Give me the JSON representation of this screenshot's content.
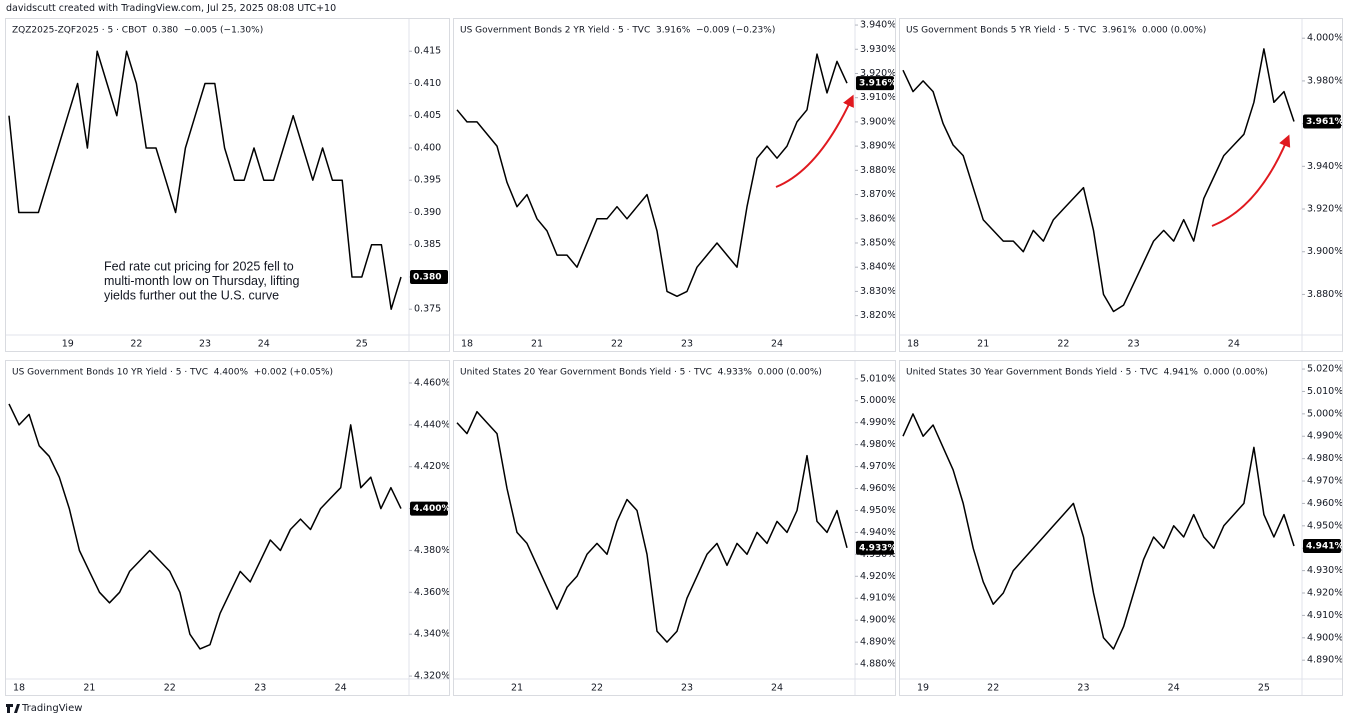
{
  "header": "davidscutt created with TradingView.com, Jul 25, 2025 08:08 UTC+10",
  "footer": "TradingView",
  "chart_data": [
    {
      "type": "line",
      "title": "ZQZ2025-ZQF2025 · 5 · CBOT  0.380  −0.005 (−1.30%)",
      "color": "#000000",
      "categories": [
        null,
        null,
        null,
        null,
        null,
        null,
        "19",
        null,
        null,
        null,
        null,
        null,
        null,
        "22",
        null,
        null,
        null,
        null,
        null,
        null,
        "23",
        null,
        null,
        null,
        null,
        null,
        "24",
        null,
        null,
        null,
        null,
        null,
        null,
        null,
        null,
        null,
        "25",
        null,
        null,
        null,
        null
      ],
      "values": [
        0.405,
        0.39,
        0.39,
        0.39,
        0.395,
        0.4,
        0.405,
        0.41,
        0.4,
        0.415,
        0.41,
        0.405,
        0.415,
        0.41,
        0.4,
        0.4,
        0.395,
        0.39,
        0.4,
        0.405,
        0.41,
        0.41,
        0.4,
        0.395,
        0.395,
        0.4,
        0.395,
        0.395,
        0.4,
        0.405,
        0.4,
        0.395,
        0.4,
        0.395,
        0.395,
        0.38,
        0.38,
        0.385,
        0.385,
        0.375,
        0.38
      ],
      "ylim": [
        0.371,
        0.42
      ],
      "yticks": [
        0.375,
        {
          "value": 0.38,
          "label": "0.380"
        },
        0.385,
        {
          "value": 0.39,
          "label": "0.390"
        },
        0.395,
        {
          "value": 0.4,
          "label": "0.400"
        },
        0.405,
        {
          "value": 0.41,
          "label": "0.410"
        },
        0.415
      ],
      "last": {
        "value": 0.38,
        "label": "0.380"
      },
      "annotation": [
        "Fed rate cut pricing for 2025 fell to",
        "multi-month low on Thursday, lifting",
        "yields further out the U.S. curve"
      ]
    },
    {
      "type": "line",
      "title": "US Government Bonds 2 YR Yield · 5 · TVC  3.916%  −0.009 (−0.23%)",
      "color": "#000000",
      "categories": [
        null,
        "18",
        null,
        null,
        null,
        null,
        null,
        null,
        "21",
        null,
        null,
        null,
        null,
        null,
        null,
        null,
        "22",
        null,
        null,
        null,
        null,
        null,
        null,
        "23",
        null,
        null,
        null,
        null,
        null,
        null,
        null,
        null,
        "24",
        null,
        null,
        null,
        null,
        null,
        null,
        null
      ],
      "values": [
        3.905,
        3.9,
        3.9,
        3.895,
        3.89,
        3.875,
        3.865,
        3.87,
        3.86,
        3.855,
        3.845,
        3.845,
        3.84,
        3.85,
        3.86,
        3.86,
        3.865,
        3.86,
        3.865,
        3.87,
        3.855,
        3.83,
        3.828,
        3.83,
        3.84,
        3.845,
        3.85,
        3.845,
        3.84,
        3.865,
        3.885,
        3.89,
        3.885,
        3.89,
        3.9,
        3.905,
        3.928,
        3.912,
        3.925,
        3.916
      ],
      "ylim": [
        3.812,
        3.9425
      ],
      "yticks": [
        {
          "value": 3.82,
          "label": "3.820%"
        },
        {
          "value": 3.83,
          "label": "3.830%"
        },
        {
          "value": 3.84,
          "label": "3.840%"
        },
        {
          "value": 3.85,
          "label": "3.850%"
        },
        {
          "value": 3.86,
          "label": "3.860%"
        },
        {
          "value": 3.87,
          "label": "3.870%"
        },
        {
          "value": 3.88,
          "label": "3.880%"
        },
        {
          "value": 3.89,
          "label": "3.890%"
        },
        {
          "value": 3.9,
          "label": "3.900%"
        },
        {
          "value": 3.91,
          "label": "3.910%"
        },
        {
          "value": 3.92,
          "label": "3.920%"
        },
        {
          "value": 3.93,
          "label": "3.930%"
        },
        {
          "value": 3.94,
          "label": "3.940%"
        }
      ],
      "last": {
        "value": 3.916,
        "label": "3.916%"
      }
    },
    {
      "type": "line",
      "title": "US Government Bonds 5 YR Yield · 5 · TVC  3.961%  0.000 (0.00%)",
      "color": "#000000",
      "categories": [
        null,
        "18",
        null,
        null,
        null,
        null,
        null,
        null,
        "21",
        null,
        null,
        null,
        null,
        null,
        null,
        null,
        "22",
        null,
        null,
        null,
        null,
        null,
        null,
        "23",
        null,
        null,
        null,
        null,
        null,
        null,
        null,
        null,
        null,
        "24",
        null,
        null,
        null,
        null,
        null,
        null
      ],
      "values": [
        3.985,
        3.975,
        3.98,
        3.975,
        3.96,
        3.95,
        3.945,
        3.93,
        3.915,
        3.91,
        3.905,
        3.905,
        3.9,
        3.91,
        3.905,
        3.915,
        3.92,
        3.925,
        3.93,
        3.91,
        3.88,
        3.872,
        3.875,
        3.885,
        3.895,
        3.905,
        3.91,
        3.905,
        3.915,
        3.905,
        3.925,
        3.935,
        3.945,
        3.95,
        3.955,
        3.97,
        3.995,
        3.97,
        3.975,
        3.961
      ],
      "ylim": [
        3.861,
        4.009
      ],
      "yticks": [
        {
          "value": 3.88,
          "label": "3.880%"
        },
        {
          "value": 3.9,
          "label": "3.900%"
        },
        {
          "value": 3.92,
          "label": "3.920%"
        },
        {
          "value": 3.94,
          "label": "3.940%"
        },
        {
          "value": 3.96,
          "label": "3.960%"
        },
        {
          "value": 3.98,
          "label": "3.980%"
        },
        {
          "value": 4.0,
          "label": "4.000%"
        }
      ],
      "last": {
        "value": 3.961,
        "label": "3.961%"
      }
    },
    {
      "type": "line",
      "title": "US Government Bonds 10 YR Yield · 5 · TVC  4.400%  +0.002 (+0.05%)",
      "color": "#000000",
      "categories": [
        null,
        "18",
        null,
        null,
        null,
        null,
        null,
        null,
        "21",
        null,
        null,
        null,
        null,
        null,
        null,
        null,
        "22",
        null,
        null,
        null,
        null,
        null,
        null,
        null,
        null,
        "23",
        null,
        null,
        null,
        null,
        null,
        null,
        null,
        "24",
        null,
        null,
        null,
        null,
        null,
        null
      ],
      "values": [
        4.45,
        4.44,
        4.445,
        4.43,
        4.425,
        4.415,
        4.4,
        4.38,
        4.37,
        4.36,
        4.355,
        4.36,
        4.37,
        4.375,
        4.38,
        4.375,
        4.37,
        4.36,
        4.34,
        4.333,
        4.335,
        4.35,
        4.36,
        4.37,
        4.365,
        4.375,
        4.385,
        4.38,
        4.39,
        4.395,
        4.39,
        4.4,
        4.405,
        4.41,
        4.44,
        4.41,
        4.415,
        4.4,
        4.41,
        4.4
      ],
      "ylim": [
        4.3186,
        4.4705
      ],
      "yticks": [
        {
          "value": 4.32,
          "label": "4.320%"
        },
        {
          "value": 4.34,
          "label": "4.340%"
        },
        {
          "value": 4.36,
          "label": "4.360%"
        },
        {
          "value": 4.38,
          "label": "4.380%"
        },
        {
          "value": 4.4,
          "label": "4.400%"
        },
        {
          "value": 4.42,
          "label": "4.420%"
        },
        {
          "value": 4.44,
          "label": "4.440%"
        },
        {
          "value": 4.46,
          "label": "4.460%"
        }
      ],
      "last": {
        "value": 4.4,
        "label": "4.400%"
      }
    },
    {
      "type": "line",
      "title": "United States 20 Year Government Bonds Yield · 5 · TVC  4.933%  0.000 (0.00%)",
      "color": "#000000",
      "categories": [
        null,
        null,
        null,
        null,
        null,
        null,
        "21",
        null,
        null,
        null,
        null,
        null,
        null,
        null,
        "22",
        null,
        null,
        null,
        null,
        null,
        null,
        null,
        null,
        "23",
        null,
        null,
        null,
        null,
        null,
        null,
        null,
        null,
        "24",
        null,
        null,
        null,
        null,
        null,
        null,
        null
      ],
      "values": [
        4.99,
        4.985,
        4.995,
        4.99,
        4.985,
        4.96,
        4.94,
        4.935,
        4.925,
        4.915,
        4.905,
        4.915,
        4.92,
        4.93,
        4.935,
        4.93,
        4.945,
        4.955,
        4.95,
        4.93,
        4.895,
        4.89,
        4.895,
        4.91,
        4.92,
        4.93,
        4.935,
        4.925,
        4.935,
        4.93,
        4.94,
        4.935,
        4.945,
        4.94,
        4.95,
        4.975,
        4.945,
        4.94,
        4.95,
        4.933
      ],
      "ylim": [
        4.8732,
        5.0181
      ],
      "yticks": [
        {
          "value": 4.88,
          "label": "4.880%"
        },
        {
          "value": 4.89,
          "label": "4.890%"
        },
        {
          "value": 4.9,
          "label": "4.900%"
        },
        {
          "value": 4.91,
          "label": "4.910%"
        },
        {
          "value": 4.92,
          "label": "4.920%"
        },
        {
          "value": 4.93,
          "label": "4.930%"
        },
        {
          "value": 4.94,
          "label": "4.940%"
        },
        {
          "value": 4.95,
          "label": "4.950%"
        },
        {
          "value": 4.96,
          "label": "4.960%"
        },
        {
          "value": 4.97,
          "label": "4.970%"
        },
        {
          "value": 4.98,
          "label": "4.980%"
        },
        {
          "value": 4.99,
          "label": "4.990%"
        },
        {
          "value": 5.0,
          "label": "5.000%"
        },
        {
          "value": 5.01,
          "label": "5.010%"
        }
      ],
      "last": {
        "value": 4.933,
        "label": "4.933%"
      }
    },
    {
      "type": "line",
      "title": "United States 30 Year Government Bonds Yield · 5 · TVC  4.941%  0.000 (0.00%)",
      "color": "#000000",
      "categories": [
        null,
        null,
        "19",
        null,
        null,
        null,
        null,
        null,
        null,
        "22",
        null,
        null,
        null,
        null,
        null,
        null,
        null,
        null,
        "23",
        null,
        null,
        null,
        null,
        null,
        null,
        null,
        null,
        "24",
        null,
        null,
        null,
        null,
        null,
        null,
        null,
        null,
        "25",
        null,
        null,
        null
      ],
      "values": [
        4.99,
        5.0,
        4.99,
        4.995,
        4.985,
        4.975,
        4.96,
        4.94,
        4.925,
        4.915,
        4.92,
        4.93,
        4.935,
        4.94,
        4.945,
        4.95,
        4.955,
        4.96,
        4.945,
        4.92,
        4.9,
        4.895,
        4.905,
        4.92,
        4.935,
        4.945,
        4.94,
        4.95,
        4.945,
        4.955,
        4.945,
        4.94,
        4.95,
        4.955,
        4.96,
        4.985,
        4.955,
        4.945,
        4.955,
        4.941
      ],
      "ylim": [
        4.8816,
        5.0236
      ],
      "yticks": [
        {
          "value": 4.89,
          "label": "4.890%"
        },
        {
          "value": 4.9,
          "label": "4.900%"
        },
        {
          "value": 4.91,
          "label": "4.910%"
        },
        {
          "value": 4.92,
          "label": "4.920%"
        },
        {
          "value": 4.93,
          "label": "4.930%"
        },
        {
          "value": 4.94,
          "label": "4.940%"
        },
        {
          "value": 4.95,
          "label": "4.950%"
        },
        {
          "value": 4.96,
          "label": "4.960%"
        },
        {
          "value": 4.97,
          "label": "4.970%"
        },
        {
          "value": 4.98,
          "label": "4.980%"
        },
        {
          "value": 4.99,
          "label": "4.990%"
        },
        {
          "value": 5.0,
          "label": "5.000%"
        },
        {
          "value": 5.01,
          "label": "5.010%"
        },
        {
          "value": 5.02,
          "label": "5.020%"
        }
      ],
      "last": {
        "value": 4.941,
        "label": "4.941%"
      }
    }
  ]
}
